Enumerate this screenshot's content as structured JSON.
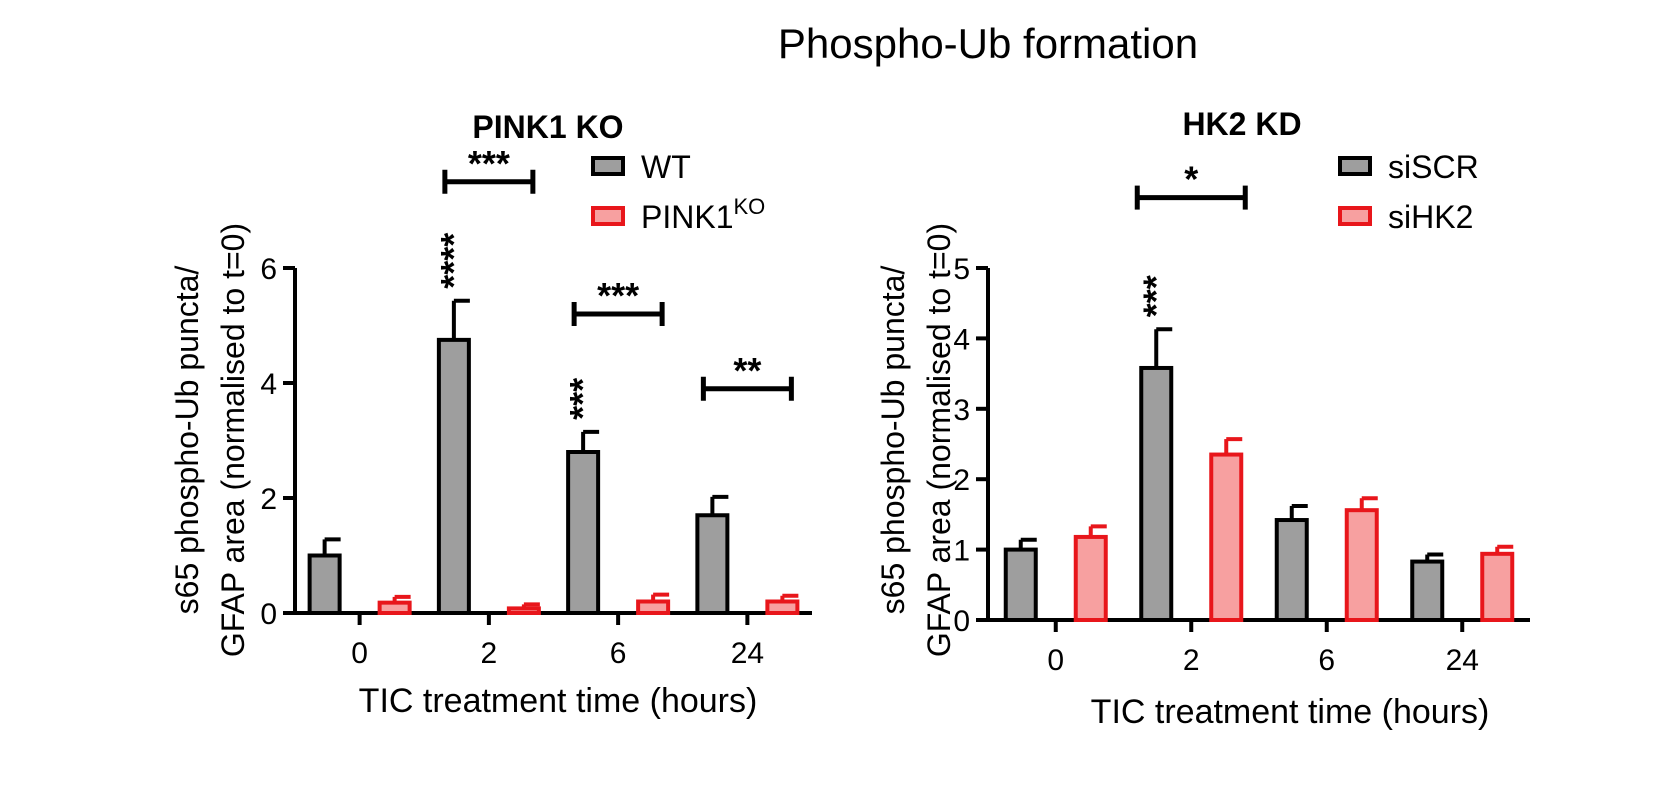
{
  "figure_title": "Phospho-Ub formation",
  "chart_data": [
    {
      "type": "bar",
      "title": "PINK1 KO",
      "xlabel": "TIC treatment time (hours)",
      "ylabel_line1": "s65 phospho-Ub puncta/",
      "ylabel_line2": "GFAP area (normalised to t=0)",
      "categories": [
        "0",
        "2",
        "6",
        "24"
      ],
      "ylim": [
        0,
        6
      ],
      "yticks": [
        "0",
        "2",
        "4",
        "6"
      ],
      "series": [
        {
          "name": "WT",
          "sup": "",
          "fill": "#9e9e9e",
          "stroke": "#000000",
          "values": [
            1.0,
            4.75,
            2.8,
            1.7
          ],
          "errors": [
            0.28,
            0.68,
            0.35,
            0.32
          ]
        },
        {
          "name": "PINK1",
          "sup": "KO",
          "fill": "#f7a0a0",
          "stroke": "#e8161b",
          "values": [
            0.18,
            0.08,
            0.2,
            0.2
          ],
          "errors": [
            0.1,
            0.07,
            0.12,
            0.1
          ]
        }
      ],
      "bar_annotations": [
        {
          "category": 1,
          "series": 0,
          "text": "****"
        },
        {
          "category": 2,
          "series": 0,
          "text": "***"
        }
      ],
      "brackets": [
        {
          "category": 1,
          "text": "***",
          "y": 7.5
        },
        {
          "category": 2,
          "text": "***",
          "y": 5.2
        },
        {
          "category": 3,
          "text": "**",
          "y": 3.9
        }
      ]
    },
    {
      "type": "bar",
      "title": "HK2 KD",
      "xlabel": "TIC treatment time (hours)",
      "ylabel_line1": "s65 phospho-Ub puncta/",
      "ylabel_line2": "GFAP area (normalised to t=0)",
      "categories": [
        "0",
        "2",
        "6",
        "24"
      ],
      "ylim": [
        0,
        5
      ],
      "yticks": [
        "0",
        "1",
        "2",
        "3",
        "4",
        "5"
      ],
      "series": [
        {
          "name": "siSCR",
          "sup": "",
          "fill": "#9e9e9e",
          "stroke": "#000000",
          "values": [
            1.0,
            3.58,
            1.42,
            0.83
          ],
          "errors": [
            0.14,
            0.55,
            0.2,
            0.1
          ]
        },
        {
          "name": "siHK2",
          "sup": "",
          "fill": "#f7a0a0",
          "stroke": "#e8161b",
          "values": [
            1.18,
            2.35,
            1.56,
            0.94
          ],
          "errors": [
            0.15,
            0.22,
            0.17,
            0.1
          ]
        }
      ],
      "bar_annotations": [
        {
          "category": 1,
          "series": 0,
          "text": "***"
        }
      ],
      "brackets": [
        {
          "category": 1,
          "text": "*",
          "y": 6.0
        }
      ]
    }
  ]
}
